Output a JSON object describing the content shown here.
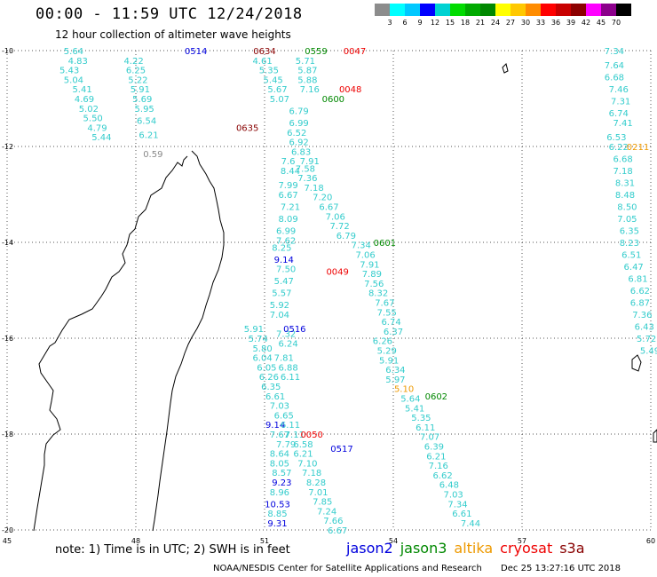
{
  "title": "00:00 - 11:59 UTC 12/24/2018",
  "subtitle": "12 hour collection of altimeter wave heights",
  "note": "note: 1) Time is in UTC; 2) SWH is in feet",
  "credit": "NOAA/NESDIS Center for Satellite Applications and Research",
  "timestamp": "Dec 25 13:27:16 UTC 2018",
  "legend": [
    {
      "label": "jason2",
      "color": "#0000dd"
    },
    {
      "label": "jason3",
      "color": "#008800"
    },
    {
      "label": "altika",
      "color": "#ee9900"
    },
    {
      "label": "cryosat",
      "color": "#ee0000"
    },
    {
      "label": "s3a",
      "color": "#880000"
    }
  ],
  "scale": {
    "labels": [
      "3",
      "6",
      "9",
      "12",
      "15",
      "18",
      "21",
      "24",
      "27",
      "30",
      "33",
      "36",
      "39",
      "42",
      "45",
      "70"
    ],
    "colors": [
      "#8c8c8c",
      "#00ffff",
      "#00c8ff",
      "#0000ff",
      "#00d2d2",
      "#00dc00",
      "#00aa00",
      "#008800",
      "#ffff00",
      "#ffc800",
      "#ff8c00",
      "#ff0000",
      "#c80000",
      "#8c0000",
      "#ff00ff",
      "#8c008c",
      "#000000"
    ]
  },
  "chart_data": {
    "type": "map",
    "lon_range": [
      45,
      60
    ],
    "lat_range": [
      -20,
      -10
    ],
    "x_ticks": [
      "45",
      "48",
      "51",
      "54",
      "57",
      "60"
    ],
    "y_ticks": [
      "-10",
      "-12",
      "-14",
      "-16",
      "-18",
      "-20"
    ],
    "track_labels": [
      {
        "text": "0514",
        "lon": 49.4,
        "lat": -10.0,
        "color": "#0000dd"
      },
      {
        "text": "0634",
        "lon": 51.0,
        "lat": -10.0,
        "color": "#880000"
      },
      {
        "text": "0559",
        "lon": 52.2,
        "lat": -10.0,
        "color": "#008800"
      },
      {
        "text": "0047",
        "lon": 53.1,
        "lat": -10.0,
        "color": "#ee0000"
      },
      {
        "text": "0048",
        "lon": 53.0,
        "lat": -10.8,
        "color": "#ee0000"
      },
      {
        "text": "0600",
        "lon": 52.6,
        "lat": -11.0,
        "color": "#008800"
      },
      {
        "text": "0635",
        "lon": 50.6,
        "lat": -11.6,
        "color": "#880000"
      },
      {
        "text": "0211",
        "lon": 59.7,
        "lat": -12.0,
        "color": "#ee9900"
      },
      {
        "text": "0601",
        "lon": 53.8,
        "lat": -14.0,
        "color": "#008800"
      },
      {
        "text": "0049",
        "lon": 52.7,
        "lat": -14.6,
        "color": "#ee0000"
      },
      {
        "text": "0516",
        "lon": 51.7,
        "lat": -15.8,
        "color": "#0000dd"
      },
      {
        "text": "0602",
        "lon": 55.0,
        "lat": -17.2,
        "color": "#008800"
      },
      {
        "text": "0050",
        "lon": 52.1,
        "lat": -18.0,
        "color": "#ee0000"
      },
      {
        "text": "0517",
        "lon": 52.8,
        "lat": -18.3,
        "color": "#0000dd"
      }
    ],
    "swh_points": [
      {
        "v": "5.64",
        "lon": 46.55,
        "lat": -10.0,
        "color": "#33cccc"
      },
      {
        "v": "4.83",
        "lon": 46.65,
        "lat": -10.2,
        "color": "#33cccc"
      },
      {
        "v": "5.43",
        "lon": 46.45,
        "lat": -10.4,
        "color": "#33cccc"
      },
      {
        "v": "5.04",
        "lon": 46.55,
        "lat": -10.6,
        "color": "#33cccc"
      },
      {
        "v": "5.41",
        "lon": 46.75,
        "lat": -10.8,
        "color": "#33cccc"
      },
      {
        "v": "4.69",
        "lon": 46.8,
        "lat": -11.0,
        "color": "#33cccc"
      },
      {
        "v": "5.02",
        "lon": 46.9,
        "lat": -11.2,
        "color": "#33cccc"
      },
      {
        "v": "5.50",
        "lon": 47.0,
        "lat": -11.4,
        "color": "#33cccc"
      },
      {
        "v": "4.79",
        "lon": 47.1,
        "lat": -11.6,
        "color": "#33cccc"
      },
      {
        "v": "5.44",
        "lon": 47.2,
        "lat": -11.8,
        "color": "#33cccc"
      },
      {
        "v": "4.22",
        "lon": 47.95,
        "lat": -10.2,
        "color": "#33cccc"
      },
      {
        "v": "6.25",
        "lon": 48.0,
        "lat": -10.4,
        "color": "#33cccc"
      },
      {
        "v": "5.22",
        "lon": 48.05,
        "lat": -10.6,
        "color": "#33cccc"
      },
      {
        "v": "5.91",
        "lon": 48.1,
        "lat": -10.8,
        "color": "#33cccc"
      },
      {
        "v": "5.69",
        "lon": 48.15,
        "lat": -11.0,
        "color": "#33cccc"
      },
      {
        "v": "5.95",
        "lon": 48.2,
        "lat": -11.2,
        "color": "#33cccc"
      },
      {
        "v": "6.54",
        "lon": 48.25,
        "lat": -11.45,
        "color": "#33cccc"
      },
      {
        "v": "6.21",
        "lon": 48.3,
        "lat": -11.75,
        "color": "#33cccc"
      },
      {
        "v": "0.59",
        "lon": 48.4,
        "lat": -12.15,
        "color": "#888888"
      },
      {
        "v": "4.61",
        "lon": 50.95,
        "lat": -10.2,
        "color": "#33cccc"
      },
      {
        "v": "5.35",
        "lon": 51.1,
        "lat": -10.4,
        "color": "#33cccc"
      },
      {
        "v": "5.45",
        "lon": 51.2,
        "lat": -10.6,
        "color": "#33cccc"
      },
      {
        "v": "5.67",
        "lon": 51.3,
        "lat": -10.8,
        "color": "#33cccc"
      },
      {
        "v": "5.07",
        "lon": 51.35,
        "lat": -11.0,
        "color": "#33cccc"
      },
      {
        "v": "5.71",
        "lon": 51.95,
        "lat": -10.2,
        "color": "#33cccc"
      },
      {
        "v": "5.87",
        "lon": 52.0,
        "lat": -10.4,
        "color": "#33cccc"
      },
      {
        "v": "5.88",
        "lon": 52.0,
        "lat": -10.6,
        "color": "#33cccc"
      },
      {
        "v": "7.16",
        "lon": 52.05,
        "lat": -10.8,
        "color": "#33cccc"
      },
      {
        "v": "6.79",
        "lon": 51.8,
        "lat": -11.25,
        "color": "#33cccc"
      },
      {
        "v": "6.99",
        "lon": 51.8,
        "lat": -11.5,
        "color": "#33cccc"
      },
      {
        "v": "6.52",
        "lon": 51.75,
        "lat": -11.7,
        "color": "#33cccc"
      },
      {
        "v": "6.92",
        "lon": 51.8,
        "lat": -11.9,
        "color": "#33cccc"
      },
      {
        "v": "6.83",
        "lon": 51.85,
        "lat": -12.1,
        "color": "#33cccc"
      },
      {
        "v": "7.91",
        "lon": 52.05,
        "lat": -12.3,
        "color": "#33cccc"
      },
      {
        "v": "7.6",
        "lon": 51.55,
        "lat": -12.3,
        "color": "#33cccc"
      },
      {
        "v": "8.44",
        "lon": 51.6,
        "lat": -12.5,
        "color": "#33cccc"
      },
      {
        "v": "7.58",
        "lon": 51.95,
        "lat": -12.45,
        "color": "#33cccc"
      },
      {
        "v": "7.36",
        "lon": 52.0,
        "lat": -12.65,
        "color": "#33cccc"
      },
      {
        "v": "7.99",
        "lon": 51.55,
        "lat": -12.8,
        "color": "#33cccc"
      },
      {
        "v": "7.18",
        "lon": 52.15,
        "lat": -12.85,
        "color": "#33cccc"
      },
      {
        "v": "6.67",
        "lon": 51.55,
        "lat": -13.0,
        "color": "#33cccc"
      },
      {
        "v": "7.20",
        "lon": 52.35,
        "lat": -13.05,
        "color": "#33cccc"
      },
      {
        "v": "7.21",
        "lon": 51.6,
        "lat": -13.25,
        "color": "#33cccc"
      },
      {
        "v": "6.67",
        "lon": 52.5,
        "lat": -13.25,
        "color": "#33cccc"
      },
      {
        "v": "8.09",
        "lon": 51.55,
        "lat": -13.5,
        "color": "#33cccc"
      },
      {
        "v": "7.06",
        "lon": 52.65,
        "lat": -13.45,
        "color": "#33cccc"
      },
      {
        "v": "6.99",
        "lon": 51.5,
        "lat": -13.75,
        "color": "#33cccc"
      },
      {
        "v": "7.72",
        "lon": 52.75,
        "lat": -13.65,
        "color": "#33cccc"
      },
      {
        "v": "7.62",
        "lon": 51.5,
        "lat": -13.95,
        "color": "#33cccc"
      },
      {
        "v": "6.79",
        "lon": 52.9,
        "lat": -13.85,
        "color": "#33cccc"
      },
      {
        "v": "8.25",
        "lon": 51.4,
        "lat": -14.1,
        "color": "#33cccc"
      },
      {
        "v": "7.34",
        "lon": 53.25,
        "lat": -14.05,
        "color": "#33cccc"
      },
      {
        "v": "9.14",
        "lon": 51.45,
        "lat": -14.35,
        "color": "#0000dd"
      },
      {
        "v": "7.06",
        "lon": 53.35,
        "lat": -14.25,
        "color": "#33cccc"
      },
      {
        "v": "7.91",
        "lon": 53.45,
        "lat": -14.45,
        "color": "#33cccc"
      },
      {
        "v": "7.50",
        "lon": 51.5,
        "lat": -14.55,
        "color": "#33cccc"
      },
      {
        "v": "7.89",
        "lon": 53.5,
        "lat": -14.65,
        "color": "#33cccc"
      },
      {
        "v": "5.47",
        "lon": 51.45,
        "lat": -14.8,
        "color": "#33cccc"
      },
      {
        "v": "7.56",
        "lon": 53.55,
        "lat": -14.85,
        "color": "#33cccc"
      },
      {
        "v": "5.57",
        "lon": 51.4,
        "lat": -15.05,
        "color": "#33cccc"
      },
      {
        "v": "8.32",
        "lon": 53.65,
        "lat": -15.05,
        "color": "#33cccc"
      },
      {
        "v": "5.92",
        "lon": 51.35,
        "lat": -15.3,
        "color": "#33cccc"
      },
      {
        "v": "7.67",
        "lon": 53.8,
        "lat": -15.25,
        "color": "#33cccc"
      },
      {
        "v": "7.04",
        "lon": 51.35,
        "lat": -15.5,
        "color": "#33cccc"
      },
      {
        "v": "7.55",
        "lon": 53.85,
        "lat": -15.45,
        "color": "#33cccc"
      },
      {
        "v": "6.74",
        "lon": 53.95,
        "lat": -15.65,
        "color": "#33cccc"
      },
      {
        "v": "7.32",
        "lon": 51.5,
        "lat": -15.9,
        "color": "#33cccc"
      },
      {
        "v": "6.37",
        "lon": 54.0,
        "lat": -15.85,
        "color": "#33cccc"
      },
      {
        "v": "6.24",
        "lon": 51.55,
        "lat": -16.1,
        "color": "#33cccc"
      },
      {
        "v": "6.26",
        "lon": 53.75,
        "lat": -16.05,
        "color": "#33cccc"
      },
      {
        "v": "5.29",
        "lon": 53.85,
        "lat": -16.25,
        "color": "#33cccc"
      },
      {
        "v": "5.91",
        "lon": 53.9,
        "lat": -16.45,
        "color": "#33cccc"
      },
      {
        "v": "6.34",
        "lon": 54.05,
        "lat": -16.65,
        "color": "#33cccc"
      },
      {
        "v": "5.97",
        "lon": 54.05,
        "lat": -16.85,
        "color": "#33cccc"
      },
      {
        "v": "5.10",
        "lon": 54.25,
        "lat": -17.05,
        "color": "#ee9900"
      },
      {
        "v": "5.64",
        "lon": 54.4,
        "lat": -17.25,
        "color": "#33cccc"
      },
      {
        "v": "5.41",
        "lon": 54.5,
        "lat": -17.45,
        "color": "#33cccc"
      },
      {
        "v": "5.35",
        "lon": 54.65,
        "lat": -17.65,
        "color": "#33cccc"
      },
      {
        "v": "6.11",
        "lon": 54.75,
        "lat": -17.85,
        "color": "#33cccc"
      },
      {
        "v": "7.07",
        "lon": 54.85,
        "lat": -18.05,
        "color": "#33cccc"
      },
      {
        "v": "6.39",
        "lon": 54.95,
        "lat": -18.25,
        "color": "#33cccc"
      },
      {
        "v": "6.21",
        "lon": 55.0,
        "lat": -18.45,
        "color": "#33cccc"
      },
      {
        "v": "7.16",
        "lon": 55.05,
        "lat": -18.65,
        "color": "#33cccc"
      },
      {
        "v": "6.62",
        "lon": 55.15,
        "lat": -18.85,
        "color": "#33cccc"
      },
      {
        "v": "6.48",
        "lon": 55.3,
        "lat": -19.05,
        "color": "#33cccc"
      },
      {
        "v": "7.03",
        "lon": 55.4,
        "lat": -19.25,
        "color": "#33cccc"
      },
      {
        "v": "7.34",
        "lon": 55.5,
        "lat": -19.45,
        "color": "#33cccc"
      },
      {
        "v": "6.61",
        "lon": 55.6,
        "lat": -19.65,
        "color": "#33cccc"
      },
      {
        "v": "7.44",
        "lon": 55.8,
        "lat": -19.85,
        "color": "#33cccc"
      },
      {
        "v": "5.91",
        "lon": 50.75,
        "lat": -15.8,
        "color": "#33cccc"
      },
      {
        "v": "5.74",
        "lon": 50.85,
        "lat": -16.0,
        "color": "#33cccc"
      },
      {
        "v": "5.80",
        "lon": 50.95,
        "lat": -16.2,
        "color": "#33cccc"
      },
      {
        "v": "6.04",
        "lon": 50.95,
        "lat": -16.4,
        "color": "#33cccc"
      },
      {
        "v": "7.81",
        "lon": 51.45,
        "lat": -16.4,
        "color": "#33cccc"
      },
      {
        "v": "6.05",
        "lon": 51.05,
        "lat": -16.6,
        "color": "#33cccc"
      },
      {
        "v": "6.88",
        "lon": 51.55,
        "lat": -16.6,
        "color": "#33cccc"
      },
      {
        "v": "6.26",
        "lon": 51.1,
        "lat": -16.8,
        "color": "#33cccc"
      },
      {
        "v": "6.11",
        "lon": 51.6,
        "lat": -16.8,
        "color": "#33cccc"
      },
      {
        "v": "6.35",
        "lon": 51.15,
        "lat": -17.0,
        "color": "#33cccc"
      },
      {
        "v": "6.61",
        "lon": 51.25,
        "lat": -17.2,
        "color": "#33cccc"
      },
      {
        "v": "7.03",
        "lon": 51.35,
        "lat": -17.4,
        "color": "#33cccc"
      },
      {
        "v": "6.65",
        "lon": 51.45,
        "lat": -17.6,
        "color": "#33cccc"
      },
      {
        "v": "9.14",
        "lon": 51.25,
        "lat": -17.8,
        "color": "#0000dd"
      },
      {
        "v": "6.11",
        "lon": 51.6,
        "lat": -17.8,
        "color": "#33cccc"
      },
      {
        "v": "7.67",
        "lon": 51.35,
        "lat": -18.0,
        "color": "#33cccc"
      },
      {
        "v": "7.11",
        "lon": 51.7,
        "lat": -18.0,
        "color": "#33cccc"
      },
      {
        "v": "7.79",
        "lon": 51.5,
        "lat": -18.2,
        "color": "#33cccc"
      },
      {
        "v": "6.58",
        "lon": 51.9,
        "lat": -18.2,
        "color": "#33cccc"
      },
      {
        "v": "8.64",
        "lon": 51.35,
        "lat": -18.4,
        "color": "#33cccc"
      },
      {
        "v": "6.21",
        "lon": 51.9,
        "lat": -18.4,
        "color": "#33cccc"
      },
      {
        "v": "8.05",
        "lon": 51.35,
        "lat": -18.6,
        "color": "#33cccc"
      },
      {
        "v": "7.10",
        "lon": 52.0,
        "lat": -18.6,
        "color": "#33cccc"
      },
      {
        "v": "8.57",
        "lon": 51.4,
        "lat": -18.8,
        "color": "#33cccc"
      },
      {
        "v": "7.18",
        "lon": 52.1,
        "lat": -18.8,
        "color": "#33cccc"
      },
      {
        "v": "9.23",
        "lon": 51.4,
        "lat": -19.0,
        "color": "#0000dd"
      },
      {
        "v": "8.28",
        "lon": 52.2,
        "lat": -19.0,
        "color": "#33cccc"
      },
      {
        "v": "8.96",
        "lon": 51.35,
        "lat": -19.2,
        "color": "#33cccc"
      },
      {
        "v": "7.01",
        "lon": 52.25,
        "lat": -19.2,
        "color": "#33cccc"
      },
      {
        "v": "10.53",
        "lon": 51.3,
        "lat": -19.45,
        "color": "#0000dd"
      },
      {
        "v": "7.85",
        "lon": 52.35,
        "lat": -19.4,
        "color": "#33cccc"
      },
      {
        "v": "8.85",
        "lon": 51.3,
        "lat": -19.65,
        "color": "#33cccc"
      },
      {
        "v": "7.24",
        "lon": 52.45,
        "lat": -19.6,
        "color": "#33cccc"
      },
      {
        "v": "9.31",
        "lon": 51.3,
        "lat": -19.85,
        "color": "#0000dd"
      },
      {
        "v": "7.66",
        "lon": 52.6,
        "lat": -19.8,
        "color": "#33cccc"
      },
      {
        "v": "6.67",
        "lon": 52.7,
        "lat": -20.0,
        "color": "#33cccc"
      },
      {
        "v": "7.34",
        "lon": 59.15,
        "lat": -10.0,
        "color": "#33cccc"
      },
      {
        "v": "7.64",
        "lon": 59.15,
        "lat": -10.3,
        "color": "#33cccc"
      },
      {
        "v": "6.68",
        "lon": 59.15,
        "lat": -10.55,
        "color": "#33cccc"
      },
      {
        "v": "7.46",
        "lon": 59.25,
        "lat": -10.8,
        "color": "#33cccc"
      },
      {
        "v": "7.31",
        "lon": 59.3,
        "lat": -11.05,
        "color": "#33cccc"
      },
      {
        "v": "6.74",
        "lon": 59.25,
        "lat": -11.3,
        "color": "#33cccc"
      },
      {
        "v": "7.41",
        "lon": 59.35,
        "lat": -11.5,
        "color": "#33cccc"
      },
      {
        "v": "6.53",
        "lon": 59.2,
        "lat": -11.8,
        "color": "#33cccc"
      },
      {
        "v": "6.22",
        "lon": 59.25,
        "lat": -12.0,
        "color": "#33cccc"
      },
      {
        "v": "6.68",
        "lon": 59.35,
        "lat": -12.25,
        "color": "#33cccc"
      },
      {
        "v": "7.18",
        "lon": 59.35,
        "lat": -12.5,
        "color": "#33cccc"
      },
      {
        "v": "8.31",
        "lon": 59.4,
        "lat": -12.75,
        "color": "#33cccc"
      },
      {
        "v": "8.48",
        "lon": 59.4,
        "lat": -13.0,
        "color": "#33cccc"
      },
      {
        "v": "8.50",
        "lon": 59.45,
        "lat": -13.25,
        "color": "#33cccc"
      },
      {
        "v": "7.05",
        "lon": 59.45,
        "lat": -13.5,
        "color": "#33cccc"
      },
      {
        "v": "6.35",
        "lon": 59.5,
        "lat": -13.75,
        "color": "#33cccc"
      },
      {
        "v": "8.23",
        "lon": 59.5,
        "lat": -14.0,
        "color": "#33cccc"
      },
      {
        "v": "6.51",
        "lon": 59.55,
        "lat": -14.25,
        "color": "#33cccc"
      },
      {
        "v": "6.47",
        "lon": 59.6,
        "lat": -14.5,
        "color": "#33cccc"
      },
      {
        "v": "6.81",
        "lon": 59.7,
        "lat": -14.75,
        "color": "#33cccc"
      },
      {
        "v": "6.62",
        "lon": 59.75,
        "lat": -15.0,
        "color": "#33cccc"
      },
      {
        "v": "6.87",
        "lon": 59.75,
        "lat": -15.25,
        "color": "#33cccc"
      },
      {
        "v": "7.36",
        "lon": 59.8,
        "lat": -15.5,
        "color": "#33cccc"
      },
      {
        "v": "6.43",
        "lon": 59.85,
        "lat": -15.75,
        "color": "#33cccc"
      },
      {
        "v": "5.72",
        "lon": 59.9,
        "lat": -16.0,
        "color": "#33cccc"
      },
      {
        "v": "5.49",
        "lon": 59.98,
        "lat": -16.25,
        "color": "#33cccc"
      }
    ]
  }
}
